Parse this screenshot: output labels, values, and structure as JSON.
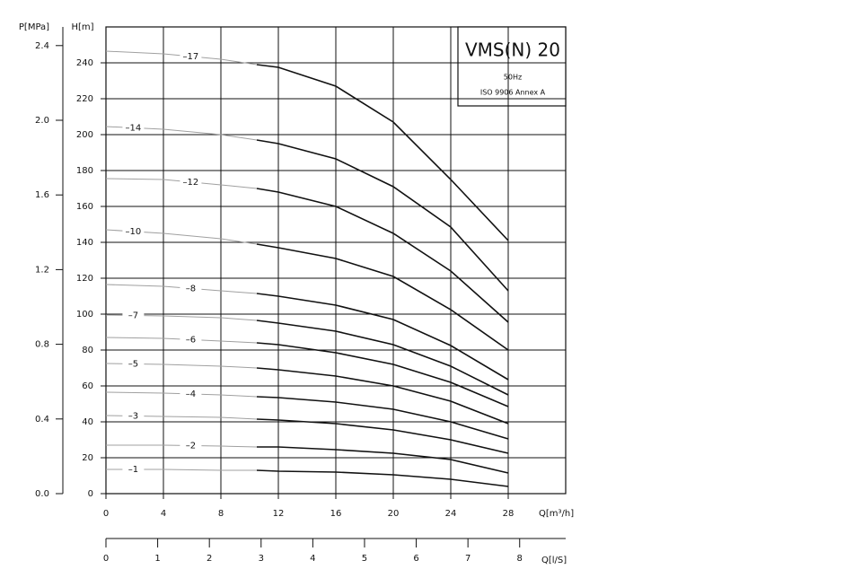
{
  "chart_data": {
    "type": "line",
    "title": "VMS(N) 20",
    "subtitle": "50Hz",
    "note": "ISO 9906 Annex A",
    "x_label": "Q[m³/h]",
    "y_label": "H[m]",
    "xlim": [
      0,
      32
    ],
    "xticks": [
      0,
      4,
      8,
      12,
      16,
      20,
      24,
      28
    ],
    "ylim": [
      0,
      260
    ],
    "yticks": [
      0,
      20,
      40,
      60,
      80,
      100,
      120,
      140,
      160,
      180,
      200,
      220,
      240
    ],
    "grid": true,
    "color": "#111111",
    "extension_color": "#a0a0a0",
    "operating_range": [
      10.5,
      28
    ],
    "p_axis": {
      "label": "P[MPa]",
      "lim": [
        0,
        2.5
      ],
      "ticks": [
        {
          "value": 0,
          "label": "0.0"
        },
        0.4,
        0.8,
        1.2,
        1.6,
        {
          "value": 2,
          "label": "2.0"
        },
        2.4
      ]
    },
    "q2_axis": {
      "label": "Q[l/S]",
      "lim": [
        0,
        8.89
      ],
      "ticks": [
        0,
        1,
        2,
        3,
        4,
        5,
        6,
        7,
        8
      ]
    },
    "x": [
      0,
      4,
      8,
      10.5,
      12,
      16,
      20,
      24,
      28
    ],
    "series": [
      {
        "name": "–17",
        "values": [
          246.5,
          245,
          242,
          239,
          237.5,
          227,
          207,
          175,
          141
        ]
      },
      {
        "name": "–14",
        "values": [
          204.5,
          203,
          200,
          197,
          195,
          186.5,
          171,
          148.5,
          113
        ]
      },
      {
        "name": "–12",
        "values": [
          175.5,
          175,
          172,
          170,
          168,
          160,
          145,
          124,
          95.5
        ]
      },
      {
        "name": "–10",
        "values": [
          147,
          145,
          142,
          139,
          137,
          131,
          121,
          102.5,
          80
        ]
      },
      {
        "name": "–8",
        "values": [
          116.5,
          115.5,
          113,
          111.5,
          110,
          105,
          97,
          82.5,
          63.5
        ]
      },
      {
        "name": "–7",
        "values": [
          99.5,
          99,
          98,
          96.5,
          95,
          90.5,
          83,
          71,
          55
        ]
      },
      {
        "name": "–6",
        "values": [
          87,
          86.5,
          85,
          84,
          83,
          78.5,
          72,
          62,
          48.5
        ]
      },
      {
        "name": "–5",
        "values": [
          72.5,
          72,
          71,
          70,
          69,
          65.5,
          60,
          51.5,
          39
        ]
      },
      {
        "name": "–4",
        "values": [
          56.5,
          56,
          55,
          54,
          53.5,
          51,
          47,
          40,
          30.5
        ]
      },
      {
        "name": "–3",
        "values": [
          43.5,
          43,
          42.5,
          41.5,
          41,
          39,
          35.5,
          30,
          22.5
        ]
      },
      {
        "name": "–2",
        "values": [
          27,
          27,
          26.5,
          26,
          26,
          24.5,
          22.5,
          19,
          11.5
        ]
      },
      {
        "name": "–1",
        "values": [
          13.5,
          13.5,
          13,
          13,
          12.5,
          12,
          10.5,
          8,
          4
        ]
      }
    ]
  }
}
